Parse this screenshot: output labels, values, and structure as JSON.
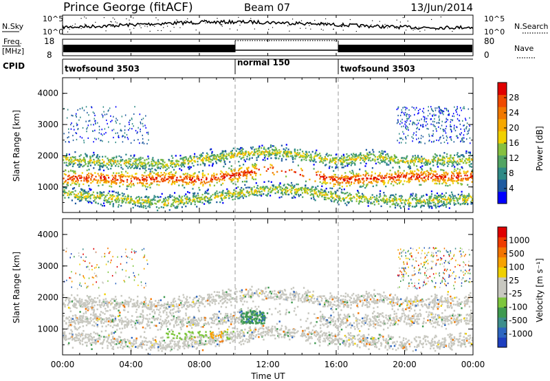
{
  "header": {
    "title": "Prince George (fitACF)",
    "beam": "Beam 07",
    "date": "13/Jun/2014"
  },
  "panel_sky": {
    "left_label": "N.Sky",
    "right_label": "N.Search",
    "left_ticks": [
      "10^5",
      "10^0"
    ],
    "right_ticks": [
      "10^5",
      "10^0"
    ]
  },
  "panel_freq": {
    "left_label": "Freq.",
    "left_unit": "[MHz]",
    "right_label": "Nave",
    "left_ticks": [
      "18",
      "8"
    ],
    "right_ticks": [
      "80",
      "0"
    ]
  },
  "panel_cpid": {
    "label": "CPID",
    "segments": [
      {
        "name": "twofsound 3503",
        "start_h": 0,
        "end_h": 10
      },
      {
        "name": "normal 150",
        "start_h": 10,
        "end_h": 16
      },
      {
        "name": "twofsound 3503",
        "start_h": 16,
        "end_h": 24
      }
    ]
  },
  "x_axis": {
    "label": "Time UT",
    "ticks": [
      "00:00",
      "04:00",
      "08:00",
      "12:00",
      "16:00",
      "20:00",
      "00:00"
    ]
  },
  "power_panel": {
    "ylabel": "Slant Range [km]",
    "yticks": [
      "4000",
      "3000",
      "2000",
      "1000"
    ],
    "colorbar_label": "Power [dB]",
    "colorbar_ticks": [
      "28",
      "24",
      "20",
      "16",
      "12",
      "8",
      "4"
    ],
    "colors": [
      "#0000ff",
      "#1e5aa0",
      "#2f8a86",
      "#52a463",
      "#86c040",
      "#f0d000",
      "#f6a800",
      "#f07800",
      "#ef4a00",
      "#e00000"
    ]
  },
  "velocity_panel": {
    "ylabel": "Slant Range [km]",
    "yticks": [
      "4000",
      "3000",
      "2000",
      "1000"
    ],
    "colorbar_label": "Velocity [m s⁻¹]",
    "colorbar_ticks": [
      "1000",
      "500",
      "100",
      "25",
      "-25",
      "-100",
      "-500",
      "-1000"
    ],
    "colors": [
      "#1e3fbf",
      "#2d66c0",
      "#3d8e8c",
      "#3f9a50",
      "#7ec63d",
      "#c8c8c0",
      "#c8c8c0",
      "#f0d000",
      "#f7a200",
      "#f27400",
      "#ef3c00",
      "#e00000"
    ]
  },
  "chart_data": {
    "type": "heatmap",
    "x_range_hours": [
      0,
      24
    ],
    "y_range_km": [
      180,
      4500
    ],
    "grid": false,
    "power_bands": [
      {
        "center_km": [
          1300,
          1320,
          1250,
          1300,
          1250,
          1400,
          1600,
          1450,
          1250,
          1300,
          1350,
          1350,
          1350
        ],
        "strength": "high"
      },
      {
        "center_km": [
          1900,
          1850,
          1800,
          1750,
          1900,
          2050,
          2150,
          2050,
          1850,
          2000,
          1850,
          1900,
          1900
        ],
        "strength": "medium"
      },
      {
        "center_km": [
          800,
          700,
          600,
          500,
          650,
          800,
          950,
          900,
          700,
          650,
          550,
          600,
          650
        ],
        "strength": "medium"
      }
    ],
    "power_band_hours": [
      0,
      2,
      4,
      6,
      8,
      10,
      12,
      14,
      16,
      18,
      20,
      22,
      24
    ],
    "velocity_notes": "mostly ground scatter near 0 m/s"
  }
}
